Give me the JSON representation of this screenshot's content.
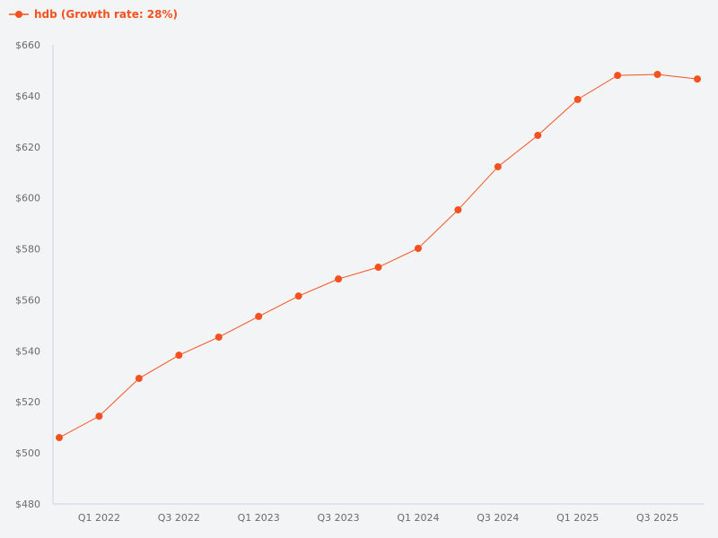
{
  "legend": {
    "label": "hdb (Growth rate: 28%)",
    "color": "#f4511e"
  },
  "chart_data": {
    "type": "line",
    "title": "",
    "xlabel": "",
    "ylabel": "",
    "ylim": [
      480,
      660
    ],
    "yticks": [
      "$480",
      "$500",
      "$520",
      "$540",
      "$560",
      "$580",
      "$600",
      "$620",
      "$640",
      "$660"
    ],
    "xtick_labels": [
      "Q1 2022",
      "Q3 2022",
      "Q1 2023",
      "Q3 2023",
      "Q1 2024",
      "Q3 2024",
      "Q1 2025",
      "Q3 2025"
    ],
    "categories": [
      "Q4 2021",
      "Q1 2022",
      "Q2 2022",
      "Q3 2022",
      "Q4 2022",
      "Q1 2023",
      "Q2 2023",
      "Q3 2023",
      "Q4 2023",
      "Q1 2024",
      "Q2 2024",
      "Q3 2024",
      "Q4 2024",
      "Q1 2025",
      "Q2 2025",
      "Q3 2025",
      "Q4 2025"
    ],
    "series": [
      {
        "name": "hdb (Growth rate: 28%)",
        "color": "#f4511e",
        "values": [
          506,
          514.4,
          529.2,
          538.3,
          545.4,
          553.5,
          561.5,
          568.2,
          572.8,
          580.2,
          595.3,
          612.2,
          624.5,
          638.6,
          648.0,
          648.4,
          646.6
        ]
      }
    ],
    "grid": false,
    "legend_position": "top-left"
  }
}
